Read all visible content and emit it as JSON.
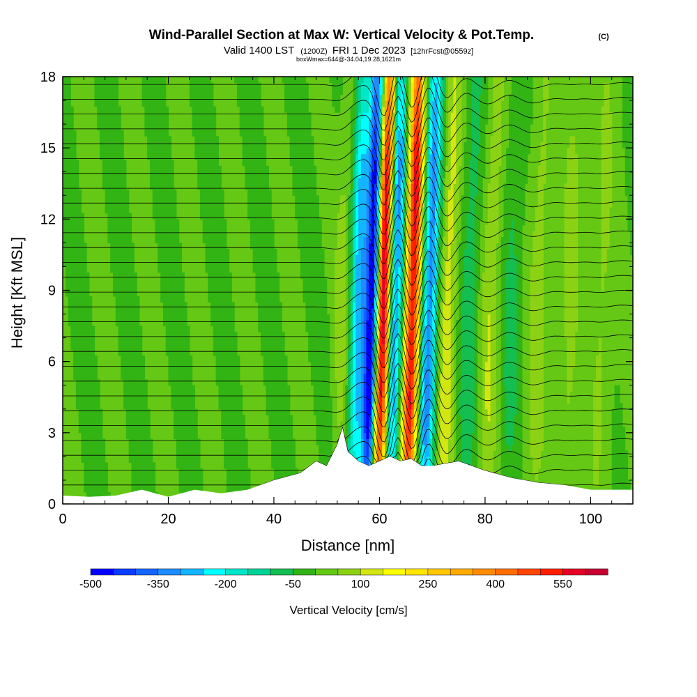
{
  "chart_data": {
    "type": "heatmap",
    "title": {
      "main": "Wind-Parallel Section at Max W: Vertical Velocity & Pot.Temp.",
      "copyright": "(C)"
    },
    "subtitle": {
      "valid": "Valid 1400 LST",
      "zulu": "(1200Z)",
      "date": "FRI 1 Dec 2023",
      "forecast": "[12hrFcst@0559z]"
    },
    "subtitle2": "boxWmax=644@-34.04,19.28,1621m",
    "xlabel": "Distance [nm]",
    "ylabel": "Height [Kft MSL]",
    "xlim": [
      0,
      108
    ],
    "ylim": [
      0,
      18
    ],
    "x_ticks": [
      "0",
      "20",
      "40",
      "60",
      "80",
      "100"
    ],
    "y_ticks": [
      "0",
      "3",
      "6",
      "9",
      "12",
      "15",
      "18"
    ],
    "colorbar": {
      "title": "Vertical Velocity [cm/s]",
      "labels": [
        "-500",
        "-350",
        "-200",
        "-50",
        "100",
        "250",
        "400",
        "550"
      ],
      "levels": [
        -500,
        -450,
        -400,
        -350,
        -300,
        -250,
        -200,
        -150,
        -100,
        -50,
        0,
        50,
        100,
        150,
        200,
        250,
        300,
        350,
        400,
        450,
        500,
        550,
        600
      ],
      "colors": [
        "#0000ff",
        "#0a3cff",
        "#1464ff",
        "#1e8cff",
        "#14b4ff",
        "#00ffff",
        "#00e6c8",
        "#00d296",
        "#14be50",
        "#32b414",
        "#64c814",
        "#8cd214",
        "#d2e614",
        "#ffff00",
        "#ffe600",
        "#ffc800",
        "#ffaa00",
        "#ff8c00",
        "#ff6e00",
        "#ff4600",
        "#ff1e00",
        "#e60028",
        "#c80032"
      ]
    },
    "terrain_kft": {
      "x": [
        0,
        5,
        10,
        15,
        20,
        25,
        30,
        35,
        40,
        45,
        48,
        50,
        52,
        53,
        54,
        56,
        58,
        60,
        62,
        64,
        66,
        68,
        70,
        75,
        80,
        85,
        90,
        95,
        100,
        105,
        108
      ],
      "h": [
        0.35,
        0.3,
        0.35,
        0.6,
        0.3,
        0.6,
        0.45,
        0.6,
        1.0,
        1.3,
        1.8,
        1.6,
        2.5,
        3.2,
        2.2,
        1.8,
        1.6,
        1.8,
        2.0,
        1.8,
        1.9,
        1.6,
        1.6,
        1.8,
        1.4,
        1.1,
        0.9,
        0.8,
        0.6,
        0.6,
        0.6
      ]
    },
    "wave_bands": [
      {
        "center_nm": 52.8,
        "amp_cm_s": 60,
        "width_nm": 1.5
      },
      {
        "center_nm": 56.0,
        "amp_cm_s": -260,
        "width_nm": 1.5
      },
      {
        "center_nm": 58.5,
        "amp_cm_s": -500,
        "width_nm": 1.3
      },
      {
        "center_nm": 60.6,
        "amp_cm_s": 600,
        "width_nm": 1.2
      },
      {
        "center_nm": 63.0,
        "amp_cm_s": -300,
        "width_nm": 1.2
      },
      {
        "center_nm": 66.2,
        "amp_cm_s": 560,
        "width_nm": 1.3
      },
      {
        "center_nm": 69.5,
        "amp_cm_s": -330,
        "width_nm": 1.4
      },
      {
        "center_nm": 73.0,
        "amp_cm_s": 130,
        "width_nm": 1.6
      },
      {
        "center_nm": 77.0,
        "amp_cm_s": -80,
        "width_nm": 1.8
      },
      {
        "center_nm": 81.0,
        "amp_cm_s": 90,
        "width_nm": 1.8
      },
      {
        "center_nm": 85.0,
        "amp_cm_s": -60,
        "width_nm": 1.8
      },
      {
        "center_nm": 90.0,
        "amp_cm_s": 70,
        "width_nm": 2.0
      },
      {
        "center_nm": 96.0,
        "amp_cm_s": 60,
        "width_nm": 2.0
      },
      {
        "center_nm": 102.0,
        "amp_cm_s": 60,
        "width_nm": 2.0
      }
    ],
    "theta_isentropes": 28
  }
}
